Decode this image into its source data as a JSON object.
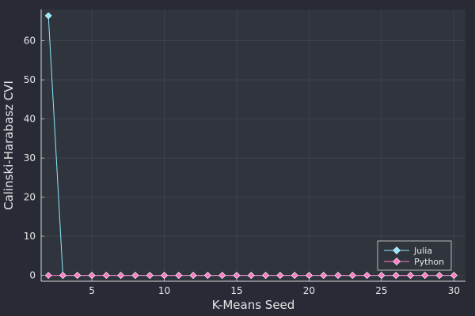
{
  "chart_data": {
    "type": "line",
    "title": "",
    "xlabel": "K-Means Seed",
    "ylabel": "Calinski-Harabasz CVI",
    "xlim": [
      1.5,
      30.8
    ],
    "ylim": [
      -1.5,
      68
    ],
    "xticks": [
      5,
      10,
      15,
      20,
      25,
      30
    ],
    "yticks": [
      0,
      10,
      20,
      30,
      40,
      50,
      60
    ],
    "grid": true,
    "legend_position": "bottom-right",
    "x": [
      2,
      3,
      4,
      5,
      6,
      7,
      8,
      9,
      10,
      11,
      12,
      13,
      14,
      15,
      16,
      17,
      18,
      19,
      20,
      21,
      22,
      23,
      24,
      25,
      26,
      27,
      28,
      29,
      30
    ],
    "series": [
      {
        "name": "Julia",
        "color": "#8be9fd",
        "marker": "diamond",
        "values": [
          66.4,
          0,
          0,
          0,
          0,
          0,
          0,
          0,
          0,
          0,
          0,
          0,
          0,
          0,
          0,
          0,
          0,
          0,
          0,
          0,
          0,
          0,
          0,
          0,
          0,
          0,
          0,
          0,
          0
        ]
      },
      {
        "name": "Python",
        "color": "#ff79c6",
        "marker": "diamond",
        "values": [
          0,
          0,
          0,
          0,
          0,
          0,
          0,
          0,
          0,
          0,
          0,
          0,
          0,
          0,
          0,
          0,
          0,
          0,
          0,
          0,
          0,
          0,
          0,
          0,
          0,
          0,
          0,
          0,
          0
        ]
      }
    ]
  }
}
